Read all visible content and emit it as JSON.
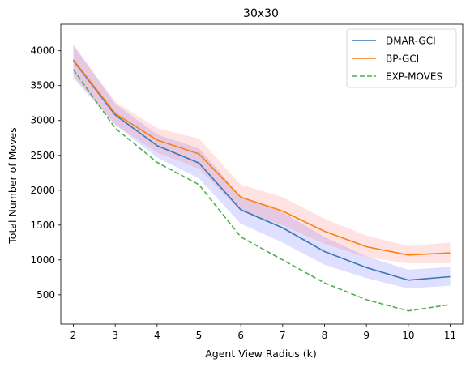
{
  "chart_data": {
    "type": "line",
    "title": "30x30",
    "xlabel": "Agent View Radius (k)",
    "ylabel": "Total Number of Moves",
    "x": [
      2,
      3,
      4,
      5,
      6,
      7,
      8,
      9,
      10,
      11
    ],
    "xlim": [
      1.7,
      11.3
    ],
    "ylim": [
      80,
      4380
    ],
    "xticks": [
      2,
      3,
      4,
      5,
      6,
      7,
      8,
      9,
      10,
      11
    ],
    "yticks": [
      500,
      1000,
      1500,
      2000,
      2500,
      3000,
      3500,
      4000
    ],
    "grid": false,
    "legend": "top-right",
    "series": [
      {
        "name": "DMAR-GCI",
        "color": "#3a77b5",
        "style": "solid",
        "values": [
          3860,
          3080,
          2640,
          2390,
          1720,
          1460,
          1120,
          890,
          710,
          760
        ],
        "lower": [
          3610,
          2940,
          2470,
          2170,
          1520,
          1250,
          930,
          740,
          590,
          630
        ],
        "upper": [
          4080,
          3240,
          2800,
          2600,
          1910,
          1680,
          1330,
          1050,
          860,
          900
        ],
        "band_color": "#6060ff"
      },
      {
        "name": "BP-GCI",
        "color": "#ff7f0e",
        "style": "solid",
        "values": [
          3870,
          3100,
          2720,
          2520,
          1900,
          1700,
          1410,
          1190,
          1070,
          1100
        ],
        "lower": [
          3640,
          2940,
          2540,
          2310,
          1700,
          1500,
          1230,
          1040,
          950,
          950
        ],
        "upper": [
          4090,
          3270,
          2890,
          2740,
          2080,
          1900,
          1590,
          1350,
          1200,
          1250
        ],
        "band_color": "#ff7070"
      },
      {
        "name": "EXP-MOVES",
        "color": "#4caf50",
        "style": "dashed",
        "values": [
          3730,
          2890,
          2400,
          2080,
          1330,
          1000,
          670,
          430,
          270,
          360
        ]
      }
    ]
  }
}
